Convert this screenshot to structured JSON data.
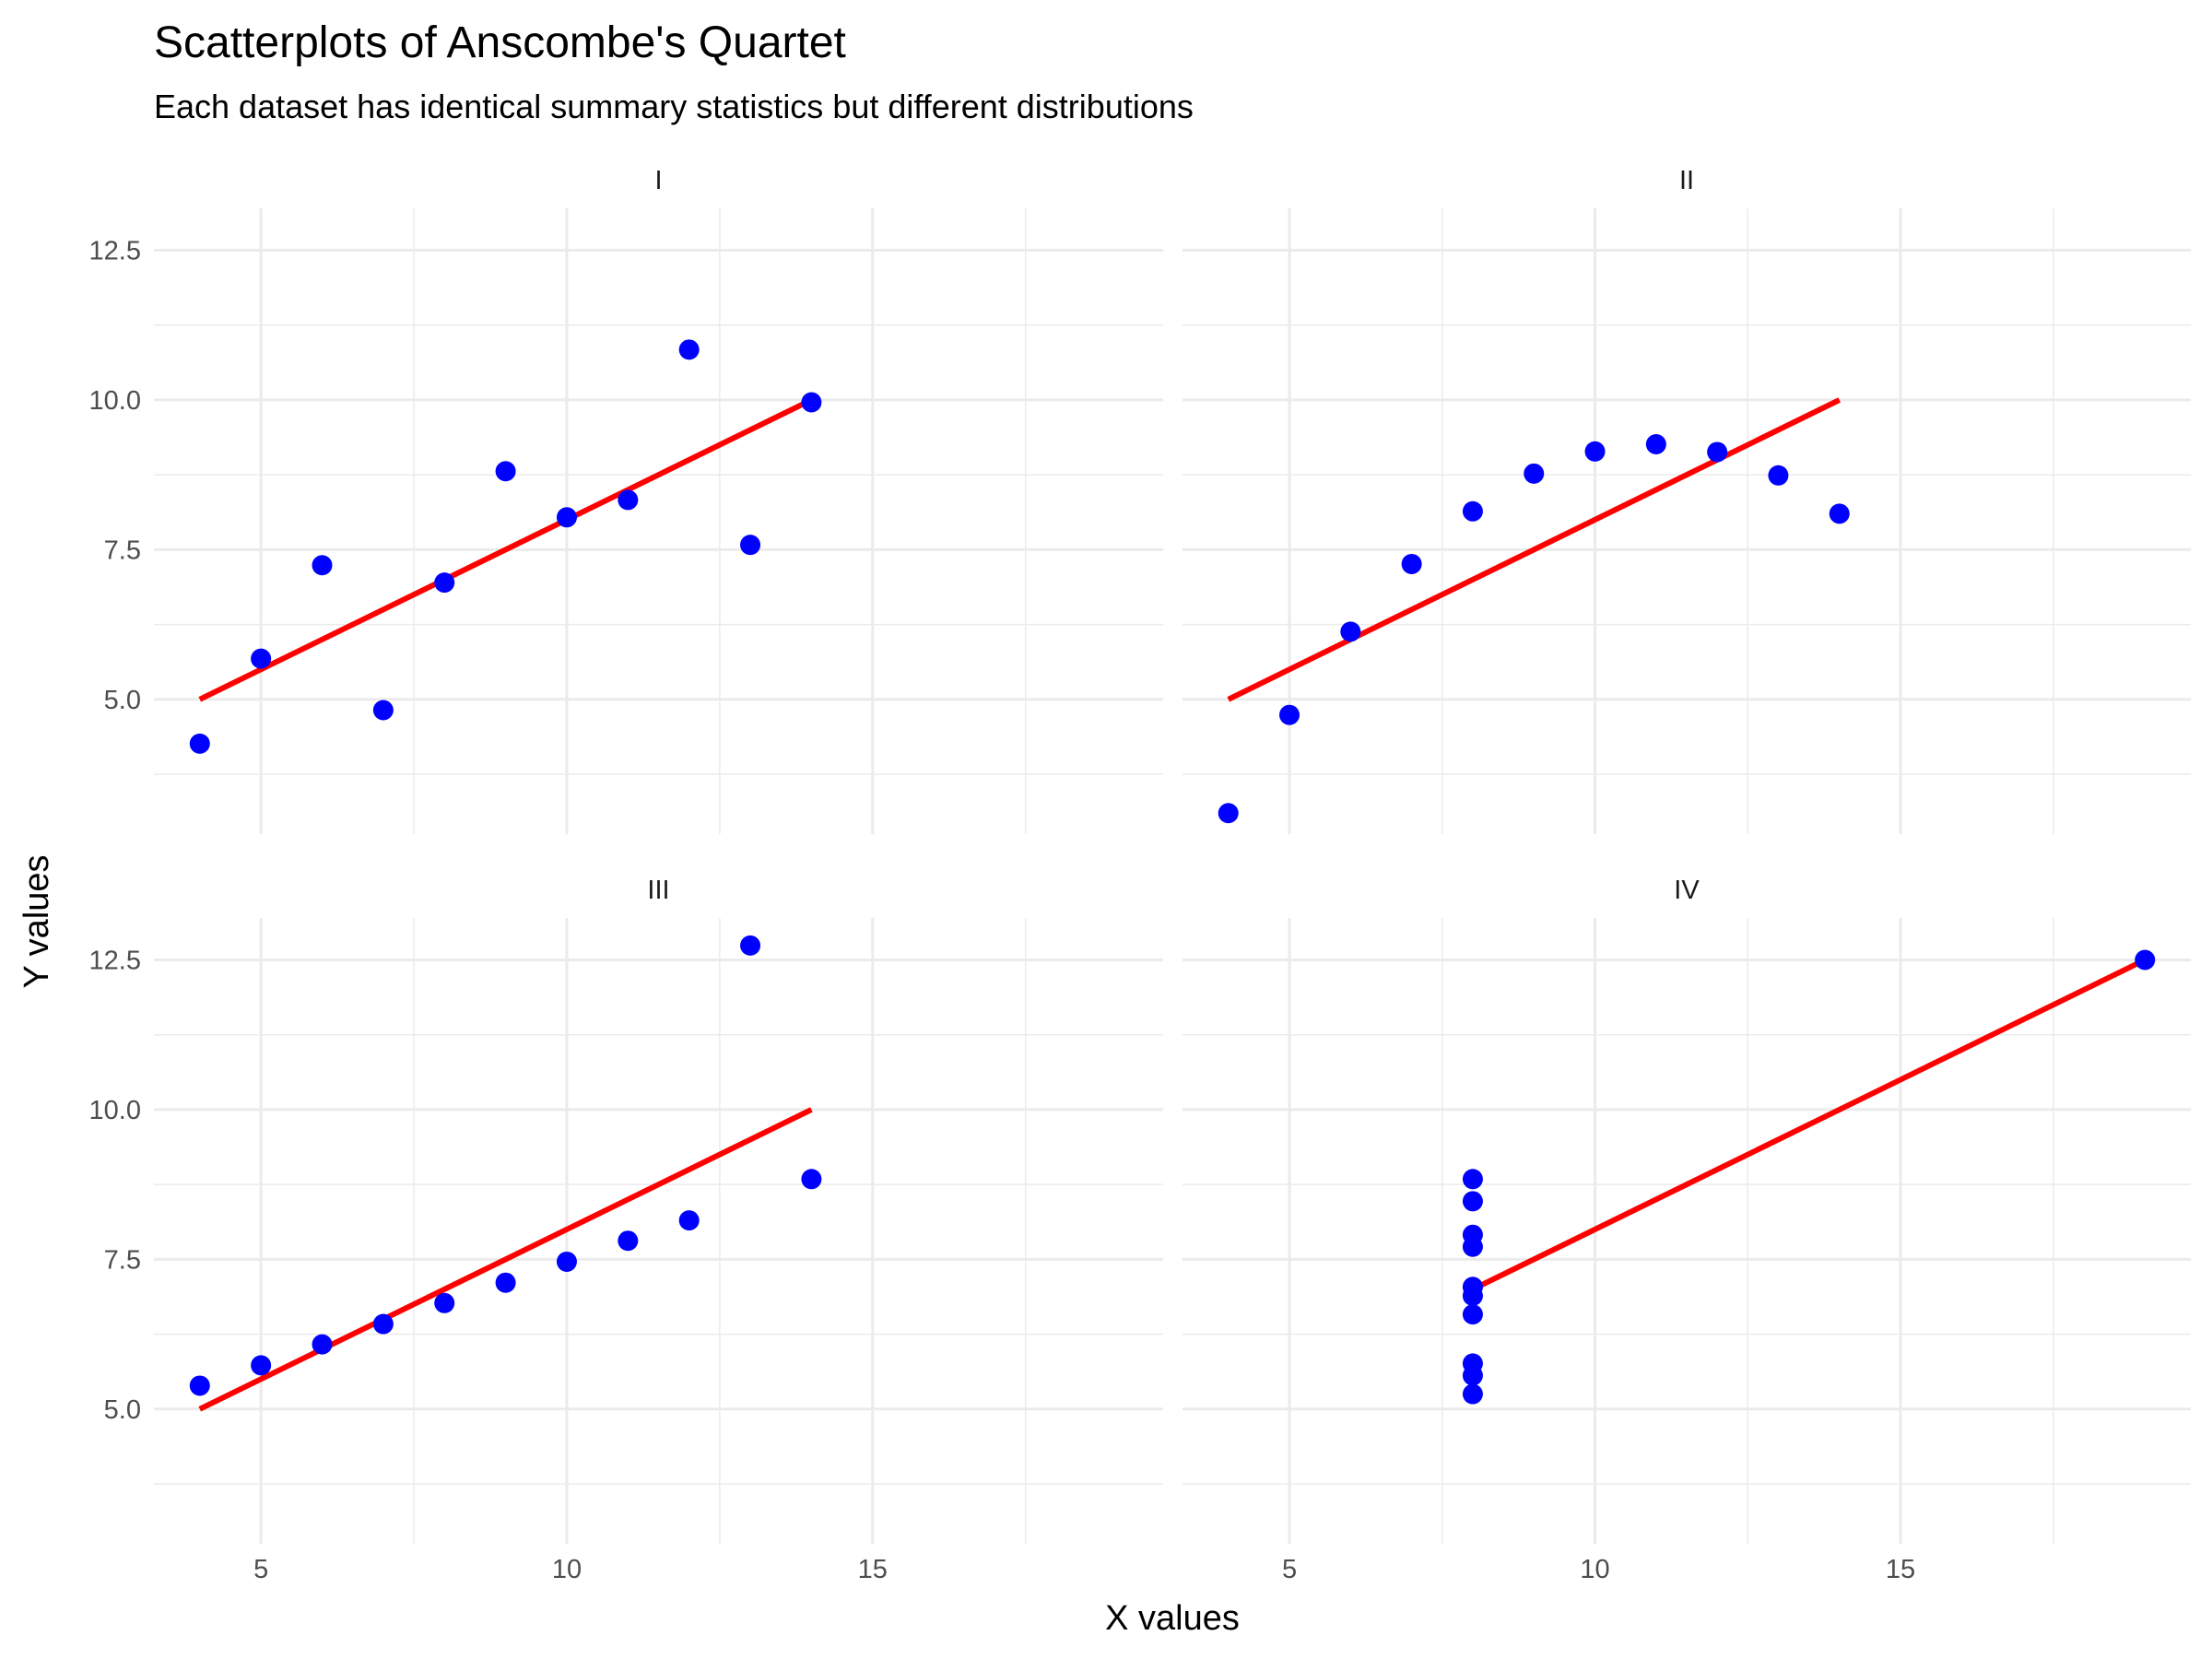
{
  "chart_data": {
    "type": "scatter",
    "title": "Scatterplots of Anscombe's Quartet",
    "subtitle": "Each dataset has identical summary statistics but different distributions",
    "xlabel": "X values",
    "ylabel": "Y values",
    "xlim": [
      3.25,
      19.75
    ],
    "ylim": [
      2.75,
      13.2
    ],
    "x_ticks": [
      5,
      10,
      15
    ],
    "x_tick_labels": [
      "5",
      "10",
      "15"
    ],
    "y_ticks": [
      5.0,
      7.5,
      10.0,
      12.5
    ],
    "y_tick_labels": [
      "5.0",
      "7.5",
      "10.0",
      "12.5"
    ],
    "grid": true,
    "point_color": "#0000FF",
    "line_color": "#FF0000",
    "panels": [
      {
        "label": "I",
        "x": [
          10,
          8,
          13,
          9,
          11,
          14,
          6,
          4,
          12,
          7,
          5
        ],
        "y": [
          8.04,
          6.95,
          7.58,
          8.81,
          8.33,
          9.96,
          7.24,
          4.26,
          10.84,
          4.82,
          5.68
        ],
        "fit": {
          "x": [
            4,
            14
          ],
          "y": [
            5.0,
            10.0
          ]
        }
      },
      {
        "label": "II",
        "x": [
          10,
          8,
          13,
          9,
          11,
          14,
          6,
          4,
          12,
          7,
          5
        ],
        "y": [
          9.14,
          8.14,
          8.74,
          8.77,
          9.26,
          8.1,
          6.13,
          3.1,
          9.13,
          7.26,
          4.74
        ],
        "fit": {
          "x": [
            4,
            14
          ],
          "y": [
            5.0,
            10.0
          ]
        }
      },
      {
        "label": "III",
        "x": [
          10,
          8,
          13,
          9,
          11,
          14,
          6,
          4,
          12,
          7,
          5
        ],
        "y": [
          7.46,
          6.77,
          12.74,
          7.11,
          7.81,
          8.84,
          6.08,
          5.39,
          8.15,
          6.42,
          5.73
        ],
        "fit": {
          "x": [
            4,
            14
          ],
          "y": [
            5.0,
            10.0
          ]
        }
      },
      {
        "label": "IV",
        "x": [
          8,
          8,
          8,
          8,
          8,
          8,
          8,
          19,
          8,
          8,
          8
        ],
        "y": [
          6.58,
          5.76,
          7.71,
          8.84,
          8.47,
          7.04,
          5.25,
          12.5,
          5.56,
          7.91,
          6.89
        ],
        "fit": {
          "x": [
            8,
            19
          ],
          "y": [
            7.0,
            12.5
          ]
        }
      }
    ]
  }
}
